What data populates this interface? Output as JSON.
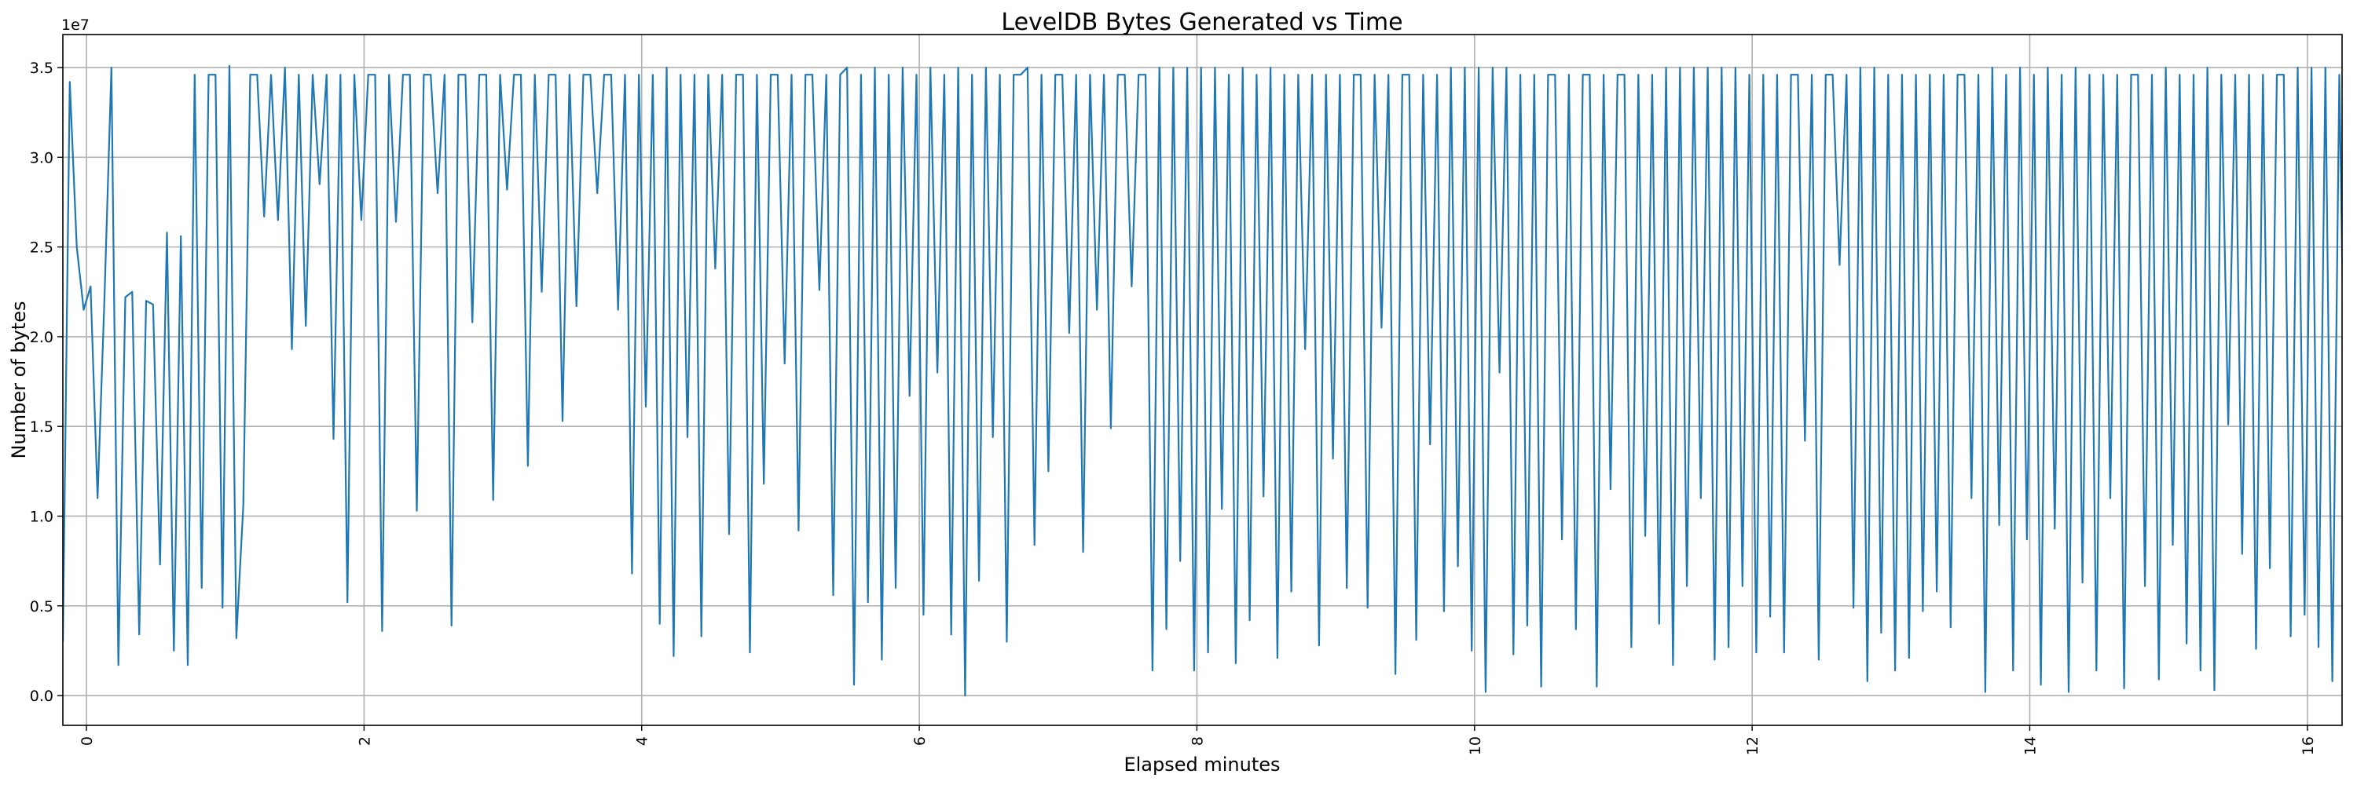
{
  "chart_data": {
    "type": "line",
    "title": "LevelDB Bytes Generated vs Time",
    "xlabel": "Elapsed minutes",
    "ylabel": "Number of bytes",
    "y_offset_label": "1e7",
    "y_scale": 10000000,
    "xlim": [
      -0.17,
      16.25
    ],
    "ylim": [
      -0.166,
      3.684
    ],
    "xticks": [
      0,
      2,
      4,
      6,
      8,
      10,
      12,
      14,
      16
    ],
    "xtick_labels": [
      "0",
      "2",
      "4",
      "6",
      "8",
      "10",
      "12",
      "14",
      "16"
    ],
    "yticks": [
      0.0,
      0.5,
      1.0,
      1.5,
      2.0,
      2.5,
      3.0,
      3.5
    ],
    "ytick_labels": [
      "0.0",
      "0.5",
      "1.0",
      "1.5",
      "2.0",
      "2.5",
      "3.0",
      "3.5"
    ],
    "grid": true,
    "color": "#1f77b4",
    "series": [
      {
        "name": "bytes",
        "x_start": -0.17,
        "x_step": 0.05,
        "y": [
          0.3,
          3.42,
          2.5,
          2.15,
          2.28,
          1.1,
          2.22,
          3.5,
          0.17,
          2.22,
          2.25,
          0.34,
          2.2,
          2.18,
          0.73,
          2.58,
          0.25,
          2.56,
          0.17,
          3.46,
          0.6,
          3.46,
          3.46,
          0.49,
          3.51,
          0.32,
          1.06,
          3.46,
          3.46,
          2.67,
          3.46,
          2.65,
          3.5,
          1.93,
          3.46,
          2.06,
          3.46,
          2.85,
          3.46,
          1.43,
          3.46,
          0.52,
          3.46,
          2.65,
          3.46,
          3.46,
          0.36,
          3.46,
          2.64,
          3.46,
          3.46,
          1.03,
          3.46,
          3.46,
          2.8,
          3.46,
          0.39,
          3.46,
          3.46,
          2.08,
          3.46,
          3.46,
          1.09,
          3.46,
          2.82,
          3.46,
          3.46,
          1.28,
          3.46,
          2.25,
          3.46,
          3.46,
          1.53,
          3.46,
          2.17,
          3.46,
          3.46,
          2.8,
          3.46,
          3.46,
          2.15,
          3.46,
          0.68,
          3.46,
          1.61,
          3.46,
          0.4,
          3.5,
          0.22,
          3.46,
          1.44,
          3.46,
          0.33,
          3.46,
          2.38,
          3.46,
          0.9,
          3.46,
          3.46,
          0.24,
          3.46,
          1.18,
          3.46,
          3.46,
          1.85,
          3.46,
          0.92,
          3.46,
          3.46,
          2.26,
          3.46,
          0.56,
          3.46,
          3.5,
          0.06,
          3.46,
          0.52,
          3.5,
          0.2,
          3.46,
          0.6,
          3.5,
          1.67,
          3.46,
          0.45,
          3.5,
          1.8,
          3.46,
          0.34,
          3.5,
          0.0,
          3.46,
          0.64,
          3.5,
          1.44,
          3.46,
          0.3,
          3.46,
          3.46,
          3.5,
          0.84,
          3.46,
          1.25,
          3.46,
          3.46,
          2.02,
          3.46,
          0.8,
          3.46,
          2.15,
          3.46,
          1.49,
          3.46,
          3.46,
          2.28,
          3.46,
          3.46,
          0.14,
          3.5,
          0.37,
          3.5,
          0.75,
          3.5,
          0.14,
          3.5,
          0.24,
          3.5,
          1.04,
          3.46,
          0.18,
          3.5,
          0.42,
          3.46,
          1.11,
          3.5,
          0.21,
          3.46,
          0.58,
          3.46,
          1.93,
          3.46,
          0.28,
          3.46,
          1.32,
          3.46,
          0.6,
          3.46,
          3.46,
          0.49,
          3.46,
          2.05,
          3.46,
          0.12,
          3.46,
          3.46,
          0.31,
          3.46,
          1.4,
          3.46,
          0.47,
          3.5,
          0.72,
          3.5,
          0.25,
          3.5,
          0.02,
          3.5,
          1.8,
          3.5,
          0.23,
          3.46,
          0.39,
          3.46,
          0.05,
          3.46,
          3.46,
          0.87,
          3.46,
          0.37,
          3.46,
          3.46,
          0.05,
          3.46,
          1.15,
          3.46,
          3.46,
          0.27,
          3.46,
          0.89,
          3.46,
          0.4,
          3.5,
          0.17,
          3.5,
          0.61,
          3.5,
          1.1,
          3.5,
          0.2,
          3.5,
          0.27,
          3.5,
          0.61,
          3.46,
          0.24,
          3.46,
          0.44,
          3.46,
          0.24,
          3.46,
          3.46,
          1.42,
          3.46,
          0.2,
          3.46,
          3.46,
          2.4,
          3.46,
          0.49,
          3.5,
          0.08,
          3.5,
          0.35,
          3.46,
          0.14,
          3.46,
          0.21,
          3.46,
          0.47,
          3.46,
          0.58,
          3.46,
          0.38,
          3.46,
          3.46,
          1.1,
          3.46,
          0.02,
          3.5,
          0.95,
          3.46,
          0.14,
          3.5,
          0.87,
          3.46,
          0.06,
          3.5,
          0.93,
          3.46,
          0.02,
          3.5,
          0.63,
          3.46,
          0.14,
          3.46,
          1.1,
          3.46,
          0.04,
          3.46,
          3.46,
          0.61,
          3.46,
          0.09,
          3.5,
          0.84,
          3.46,
          0.29,
          3.46,
          0.14,
          3.5,
          0.03,
          3.46,
          1.51,
          3.46,
          0.79,
          3.46,
          0.26,
          3.46,
          0.71,
          3.46,
          3.46,
          0.33,
          3.5,
          0.45,
          3.5,
          0.27,
          3.5,
          0.08,
          3.46,
          0.96,
          3.46,
          0.02,
          3.46,
          0.72,
          3.5,
          0.03,
          3.46,
          2.63,
          3.46
        ]
      }
    ]
  }
}
